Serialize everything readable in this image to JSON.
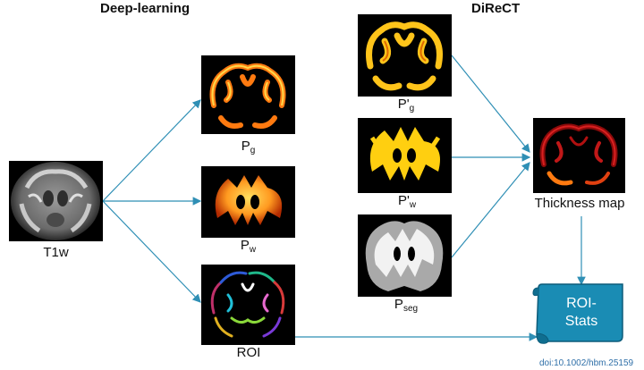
{
  "headings": {
    "deep_learning": "Deep-learning",
    "direct": "DiReCT"
  },
  "labels": {
    "t1w": "T1w",
    "pg_main": "P",
    "pg_sub": "g",
    "pw_main": "P",
    "pw_sub": "w",
    "roi": "ROI",
    "pgp_main": "P'",
    "pgp_sub": "g",
    "pwp_main": "P'",
    "pwp_sub": "w",
    "pseg_main": "P",
    "pseg_sub": "seg",
    "thickness": "Thickness map"
  },
  "stats": {
    "line1": "ROI-",
    "line2": "Stats"
  },
  "doi": "doi:10.1002/hbm.25159",
  "colors": {
    "arrow": "#2f8fb5",
    "stats_fill": "#1a8cb4",
    "stats_stroke": "#0d5c7a",
    "gm_orange": "#ff7a10",
    "wm_yellow": "#ffd21a",
    "seg_gray": "#a9a9a9"
  }
}
